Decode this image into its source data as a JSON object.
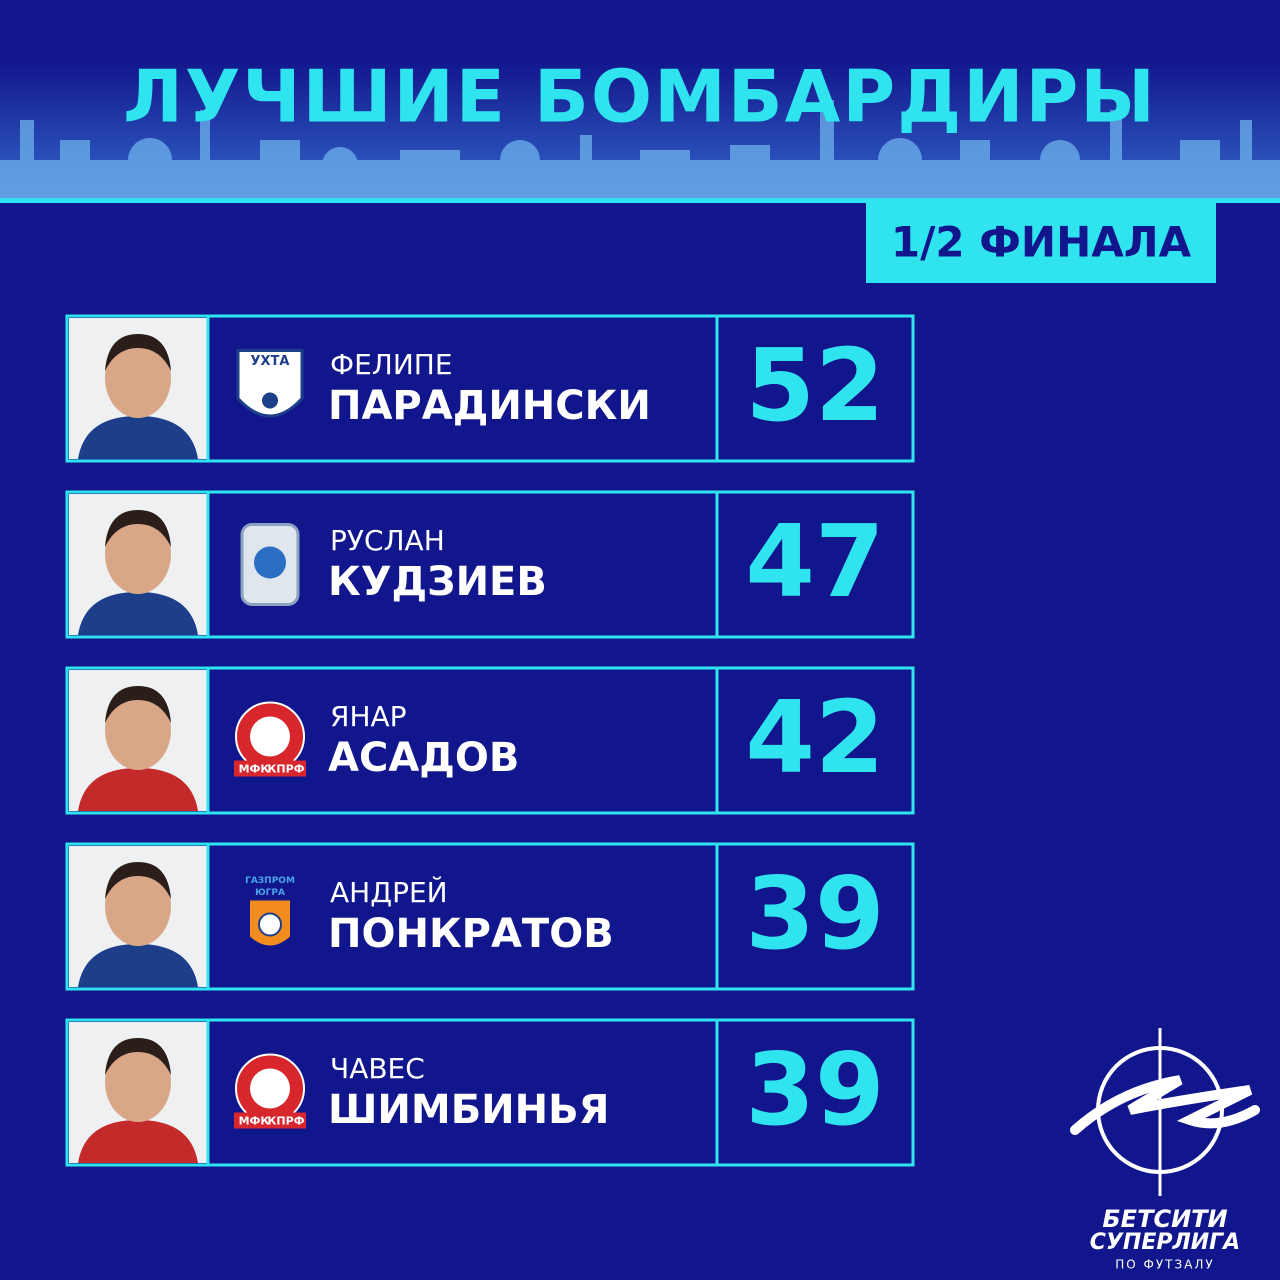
{
  "header": {
    "title": "ЛУЧШИЕ БОМБАРДИРЫ",
    "stage": "1/2 ФИНАЛА"
  },
  "players": [
    {
      "first_name": "ФЕЛИПЕ",
      "last_name": "ПАРАДИНСКИ",
      "goals": 52,
      "club_logo": {
        "type": "ukhta",
        "label": "УХТА"
      }
    },
    {
      "first_name": "РУСЛАН",
      "last_name": "КУДЗИЕВ",
      "goals": 47,
      "club_logo": {
        "type": "norilsk"
      }
    },
    {
      "first_name": "ЯНАР",
      "last_name": "АСАДОВ",
      "goals": 42,
      "club_logo": {
        "type": "kprf",
        "label": "МФК",
        "label2": "КПРФ"
      }
    },
    {
      "first_name": "АНДРЕЙ",
      "last_name": "ПОНКРАТОВ",
      "goals": 39,
      "club_logo": {
        "type": "gazprom",
        "label": "ГАЗПРОМ",
        "label2": "ЮГРА"
      }
    },
    {
      "first_name": "ЧАВЕС",
      "last_name": "ШИМБИНЬЯ",
      "goals": 39,
      "club_logo": {
        "type": "kprf",
        "label": "МФК",
        "label2": "КПРФ"
      }
    }
  ],
  "brand": {
    "line1": "БЕТСИТИ",
    "line2": "СУПЕРЛИГА",
    "line3": "ПО ФУТЗАЛУ"
  }
}
